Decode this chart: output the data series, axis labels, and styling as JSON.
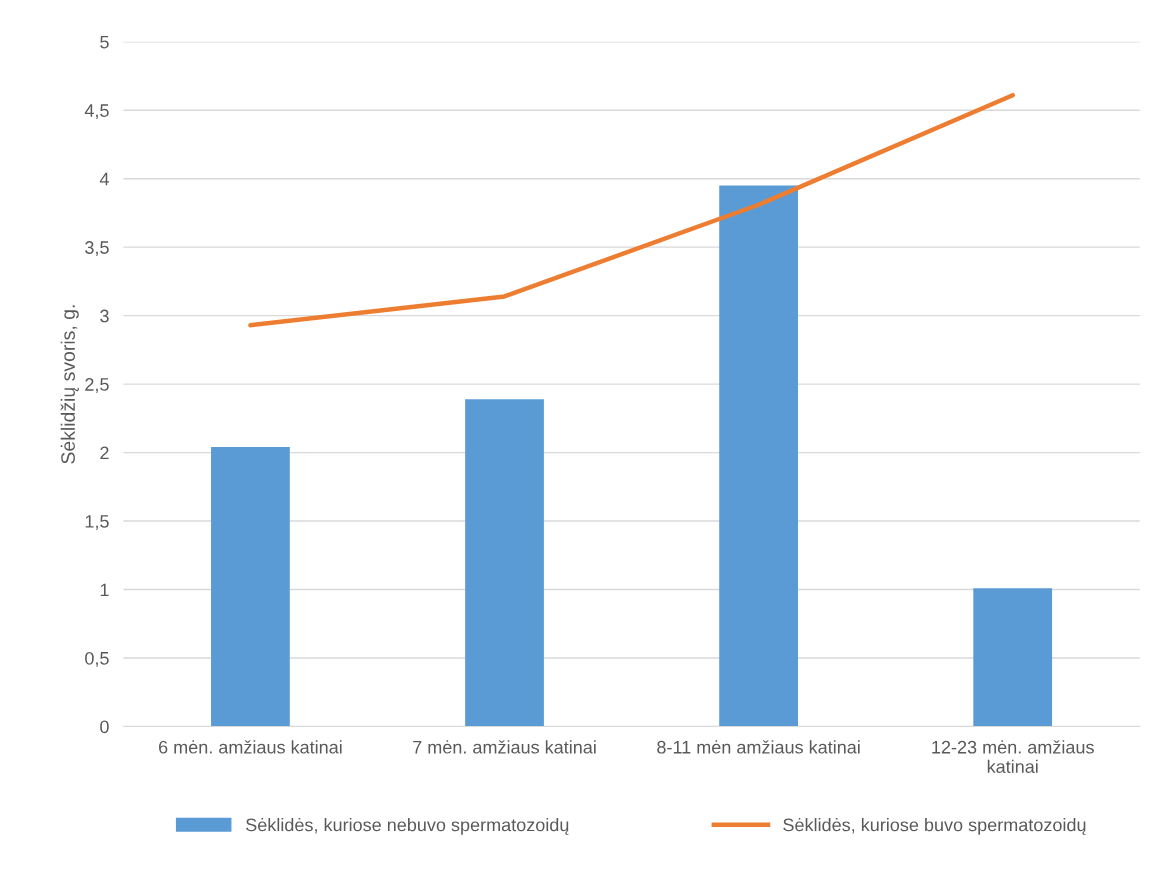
{
  "chart_data": {
    "type": "bar",
    "ylabel": "Sėklidžių svoris, g.",
    "categories": [
      "6 mėn. amžiaus katinai",
      "7 mėn. amžiaus katinai",
      "8-11 mėn amžiaus katinai",
      "12-23 mėn. amžiaus katinai"
    ],
    "series": [
      {
        "name": "Sėklidės, kuriose nebuvo spermatozoidų",
        "color": "#5b9bd5",
        "values": [
          2.04,
          2.39,
          3.95,
          1.01
        ]
      },
      {
        "name": "Sėklidės, kuriose buvo spermatozoidų",
        "type": "line",
        "color": "#ed7d31",
        "values": [
          2.93,
          3.14,
          3.81,
          4.61
        ]
      }
    ],
    "ylim": [
      0,
      5
    ],
    "yticks": [
      0,
      {
        "value": 0.5,
        "label": "0,5"
      },
      1,
      {
        "value": 1.5,
        "label": "1,5"
      },
      2,
      {
        "value": 2.5,
        "label": "2,5"
      },
      3,
      {
        "value": 3.5,
        "label": "3,5"
      },
      4,
      {
        "value": 4.5,
        "label": "4,5"
      },
      5
    ],
    "grid": "y",
    "legend": "bottom",
    "marker": "none",
    "line_style": "solid"
  }
}
